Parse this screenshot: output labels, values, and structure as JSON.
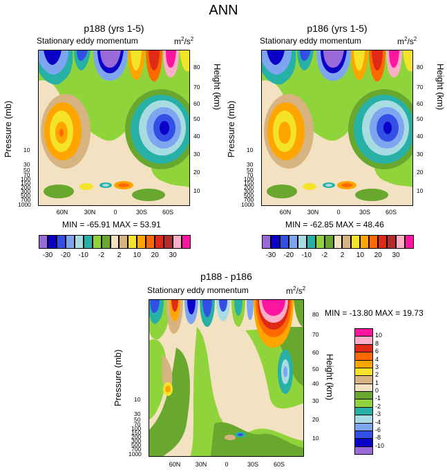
{
  "main_title": "ANN",
  "panels": [
    {
      "title": "p188 (yrs 1-5)",
      "subtitle": "Stationary eddy momentum",
      "units_base": "m",
      "units_sup1": "2",
      "units_mid": "/s",
      "units_sup2": "2",
      "ylabel_left": "Pressure (mb)",
      "ylabel_right": "Height (km)",
      "stats": "MIN = -65.91   MAX =  53.91"
    },
    {
      "title": "p186 (yrs 1-5)",
      "subtitle": "Stationary eddy momentum",
      "units_base": "m",
      "units_sup1": "2",
      "units_mid": "/s",
      "units_sup2": "2",
      "ylabel_left": "Pressure (mb)",
      "ylabel_right": "Height (km)",
      "stats": "MIN = -62.85   MAX =  48.46"
    },
    {
      "title": "p188 - p186",
      "subtitle": "Stationary eddy momentum",
      "units_base": "m",
      "units_sup1": "2",
      "units_mid": "/s",
      "units_sup2": "2",
      "ylabel_left": "Pressure (mb)",
      "ylabel_right": "Height (km)",
      "stats": "MIN = -13.80   MAX =  19.73"
    }
  ],
  "axes": {
    "x_ticks": [
      "60N",
      "30N",
      "0",
      "30S",
      "60S"
    ],
    "p_ticks": [
      "10",
      "30",
      "50",
      "70",
      "100",
      "150",
      "200",
      "250",
      "300",
      "400",
      "500",
      "600",
      "700",
      "850",
      "925",
      "1000"
    ],
    "km_ticks": [
      "10",
      "20",
      "30",
      "40",
      "50",
      "60",
      "70",
      "80"
    ]
  },
  "colorbar_top": {
    "colors": [
      "#9b6ad9",
      "#0a00c8",
      "#3350e6",
      "#7ea6f0",
      "#a8dce3",
      "#27b1a6",
      "#90d43c",
      "#69a82e",
      "#f3e2c1",
      "#d7b382",
      "#f5e32a",
      "#ffa500",
      "#ff6a00",
      "#e02a16",
      "#b52c2c",
      "#ffaec8",
      "#ff16a0"
    ],
    "labels": [
      "-30",
      "-20",
      "-10",
      "-2",
      "2",
      "10",
      "20",
      "30"
    ]
  },
  "colorbar_diff": {
    "colors": [
      "#ff16a0",
      "#ffaec8",
      "#e02a16",
      "#ff6a00",
      "#ffa500",
      "#f5e32a",
      "#d7b382",
      "#f3e2c1",
      "#69a82e",
      "#90d43c",
      "#27b1a6",
      "#a8dce3",
      "#7ea6f0",
      "#3350e6",
      "#0a00c8",
      "#9b6ad9"
    ],
    "labels": [
      "10",
      "8",
      "6",
      "4",
      "3",
      "2",
      "1",
      "0",
      "-1",
      "-2",
      "-3",
      "-4",
      "-6",
      "-8",
      "-10"
    ]
  },
  "chart_data": [
    {
      "type": "heatmap",
      "title": "p188 (yrs 1-5)",
      "subtitle": "Stationary eddy momentum",
      "units": "m2/s2",
      "xlabel": "",
      "ylabel": "Pressure (mb)",
      "ylabel_right": "Height (km)",
      "x_ticks": [
        "60N",
        "30N",
        "0",
        "30S",
        "60S"
      ],
      "min": -65.91,
      "max": 53.91,
      "levels": [
        -30,
        -25,
        -20,
        -15,
        -10,
        -5,
        -2,
        0,
        2,
        5,
        10,
        15,
        20,
        25,
        30
      ]
    },
    {
      "type": "heatmap",
      "title": "p186 (yrs 1-5)",
      "subtitle": "Stationary eddy momentum",
      "units": "m2/s2",
      "xlabel": "",
      "ylabel": "Pressure (mb)",
      "ylabel_right": "Height (km)",
      "x_ticks": [
        "60N",
        "30N",
        "0",
        "30S",
        "60S"
      ],
      "min": -62.85,
      "max": 48.46,
      "levels": [
        -30,
        -25,
        -20,
        -15,
        -10,
        -5,
        -2,
        0,
        2,
        5,
        10,
        15,
        20,
        25,
        30
      ]
    },
    {
      "type": "heatmap",
      "title": "p188 - p186",
      "subtitle": "Stationary eddy momentum",
      "units": "m2/s2",
      "xlabel": "",
      "ylabel": "Pressure (mb)",
      "ylabel_right": "Height (km)",
      "x_ticks": [
        "60N",
        "30N",
        "0",
        "30S",
        "60S"
      ],
      "min": -13.8,
      "max": 19.73,
      "levels": [
        -10,
        -8,
        -6,
        -4,
        -3,
        -2,
        -1,
        0,
        1,
        2,
        3,
        4,
        6,
        8,
        10
      ]
    }
  ]
}
